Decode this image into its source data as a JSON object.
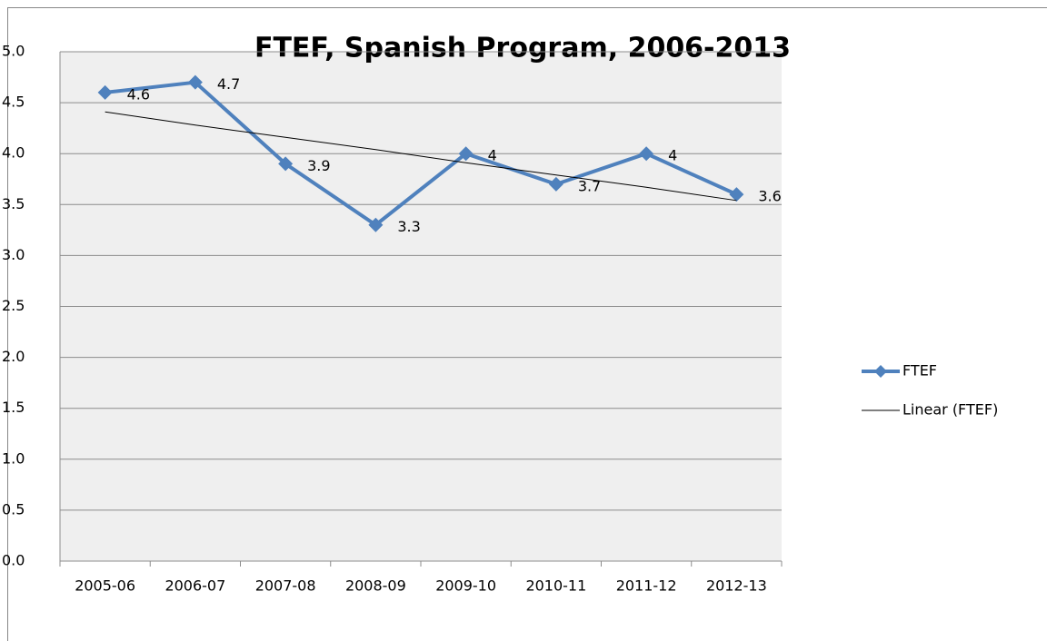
{
  "chart_data": {
    "type": "line",
    "title": "FTEF, Spanish Program, 2006-2013",
    "categories": [
      "2005-06",
      "2006-07",
      "2007-08",
      "2008-09",
      "2009-10",
      "2010-11",
      "2011-12",
      "2012-13"
    ],
    "series": [
      {
        "name": "FTEF",
        "color": "#4f81bd",
        "marker": "diamond",
        "data_labels": true,
        "values": [
          4.6,
          4.7,
          3.9,
          3.3,
          4,
          3.7,
          4,
          3.6
        ]
      },
      {
        "name": "Linear (FTEF)",
        "color": "#000000",
        "values": [
          4.41,
          4.28,
          4.16,
          4.04,
          3.91,
          3.79,
          3.67,
          3.54
        ]
      }
    ],
    "ylim": [
      0,
      5
    ],
    "yticks": [
      {
        "value": 0,
        "label": "0.0"
      },
      {
        "value": 0.5,
        "label": "0.5"
      },
      {
        "value": 1,
        "label": "1.0"
      },
      {
        "value": 1.5,
        "label": "1.5"
      },
      {
        "value": 2,
        "label": "2.0"
      },
      {
        "value": 2.5,
        "label": "2.5"
      },
      {
        "value": 3,
        "label": "3.0"
      },
      {
        "value": 3.5,
        "label": "3.5"
      },
      {
        "value": 4,
        "label": "4.0"
      },
      {
        "value": 4.5,
        "label": "4.5"
      },
      {
        "value": 5,
        "label": "5.0"
      }
    ],
    "grid": true,
    "legend": "right"
  }
}
